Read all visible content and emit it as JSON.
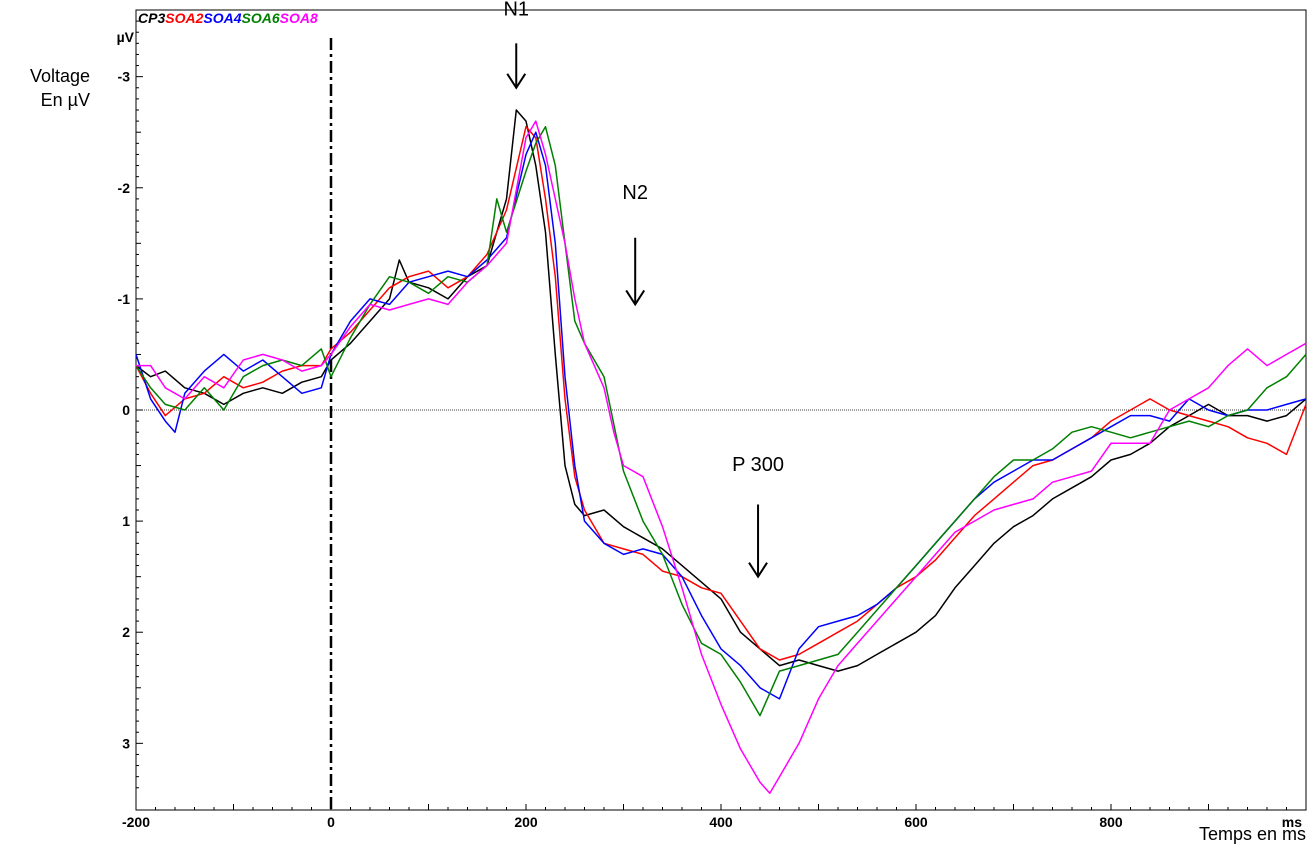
{
  "chart_data": {
    "type": "line",
    "title": "",
    "legend_title": "CP3",
    "ylabel_lines": [
      "Voltage",
      "En µV"
    ],
    "y_unit": "µV",
    "xlabel": "Temps en ms",
    "x_unit": "ms",
    "xlim": [
      -200,
      1000
    ],
    "ylim": [
      -3.6,
      3.6
    ],
    "y_inverted": true,
    "x_ticks": [
      -200,
      0,
      200,
      400,
      600,
      800
    ],
    "y_ticks": [
      -3,
      -2,
      -1,
      0,
      1,
      2,
      3
    ],
    "zero_line": true,
    "onset_line_x": 0,
    "legend_placement": "top-left",
    "series": [
      {
        "name": "CP3",
        "color": "#000000",
        "x": [
          -200,
          -185,
          -170,
          -150,
          -130,
          -110,
          -90,
          -70,
          -50,
          -30,
          -10,
          0,
          20,
          40,
          60,
          70,
          80,
          100,
          120,
          140,
          160,
          180,
          190,
          200,
          210,
          220,
          230,
          240,
          250,
          260,
          280,
          300,
          320,
          340,
          360,
          380,
          400,
          420,
          440,
          460,
          480,
          500,
          520,
          540,
          560,
          580,
          600,
          620,
          640,
          660,
          680,
          700,
          720,
          740,
          760,
          780,
          800,
          820,
          840,
          860,
          880,
          900,
          920,
          940,
          960,
          980,
          1000
        ],
        "y": [
          -0.4,
          -0.3,
          -0.35,
          -0.2,
          -0.15,
          -0.05,
          -0.15,
          -0.2,
          -0.15,
          -0.25,
          -0.3,
          -0.45,
          -0.6,
          -0.8,
          -1.0,
          -1.35,
          -1.15,
          -1.1,
          -1.0,
          -1.2,
          -1.3,
          -1.9,
          -2.7,
          -2.6,
          -2.2,
          -1.6,
          -0.5,
          0.5,
          0.85,
          0.95,
          0.9,
          1.05,
          1.15,
          1.25,
          1.4,
          1.55,
          1.7,
          2.0,
          2.15,
          2.3,
          2.25,
          2.3,
          2.35,
          2.3,
          2.2,
          2.1,
          2.0,
          1.85,
          1.6,
          1.4,
          1.2,
          1.05,
          0.95,
          0.8,
          0.7,
          0.6,
          0.45,
          0.4,
          0.3,
          0.15,
          0.05,
          -0.05,
          0.05,
          0.05,
          0.1,
          0.05,
          -0.1
        ]
      },
      {
        "name": "SOA2",
        "color": "#ff0000",
        "x": [
          -200,
          -185,
          -170,
          -150,
          -130,
          -110,
          -90,
          -70,
          -50,
          -30,
          -10,
          0,
          20,
          40,
          60,
          80,
          100,
          120,
          140,
          160,
          180,
          200,
          210,
          220,
          230,
          240,
          250,
          260,
          280,
          300,
          320,
          340,
          360,
          380,
          400,
          420,
          440,
          460,
          480,
          500,
          520,
          540,
          560,
          580,
          600,
          620,
          640,
          660,
          680,
          700,
          720,
          740,
          760,
          780,
          800,
          820,
          840,
          860,
          880,
          900,
          920,
          940,
          960,
          980,
          1000
        ],
        "y": [
          -0.4,
          -0.15,
          0.05,
          -0.1,
          -0.15,
          -0.3,
          -0.2,
          -0.25,
          -0.35,
          -0.4,
          -0.4,
          -0.55,
          -0.7,
          -0.9,
          -1.1,
          -1.2,
          -1.25,
          -1.1,
          -1.2,
          -1.4,
          -1.8,
          -2.55,
          -2.45,
          -1.9,
          -1.2,
          -0.1,
          0.6,
          0.9,
          1.2,
          1.25,
          1.3,
          1.45,
          1.5,
          1.6,
          1.65,
          1.9,
          2.15,
          2.25,
          2.2,
          2.1,
          2.0,
          1.9,
          1.75,
          1.6,
          1.5,
          1.35,
          1.15,
          0.95,
          0.8,
          0.65,
          0.5,
          0.45,
          0.35,
          0.25,
          0.1,
          0.0,
          -0.1,
          0.0,
          0.05,
          0.1,
          0.15,
          0.25,
          0.3,
          0.4,
          -0.05
        ]
      },
      {
        "name": "SOA4",
        "color": "#0000ff",
        "x": [
          -200,
          -185,
          -170,
          -160,
          -150,
          -130,
          -110,
          -90,
          -70,
          -50,
          -30,
          -10,
          0,
          20,
          40,
          60,
          80,
          100,
          120,
          140,
          160,
          180,
          200,
          210,
          220,
          230,
          240,
          250,
          260,
          280,
          300,
          320,
          340,
          360,
          380,
          400,
          420,
          440,
          460,
          480,
          500,
          520,
          540,
          560,
          580,
          600,
          620,
          640,
          660,
          680,
          700,
          720,
          740,
          760,
          780,
          800,
          820,
          840,
          860,
          880,
          900,
          920,
          940,
          960,
          980,
          1000
        ],
        "y": [
          -0.5,
          -0.1,
          0.1,
          0.2,
          -0.15,
          -0.35,
          -0.5,
          -0.35,
          -0.45,
          -0.3,
          -0.15,
          -0.2,
          -0.5,
          -0.8,
          -1.0,
          -0.95,
          -1.15,
          -1.2,
          -1.25,
          -1.2,
          -1.35,
          -1.55,
          -2.3,
          -2.5,
          -2.2,
          -1.5,
          -0.3,
          0.5,
          1.0,
          1.2,
          1.3,
          1.25,
          1.3,
          1.5,
          1.85,
          2.15,
          2.3,
          2.5,
          2.6,
          2.15,
          1.95,
          1.9,
          1.85,
          1.75,
          1.6,
          1.4,
          1.2,
          1.0,
          0.8,
          0.65,
          0.55,
          0.45,
          0.45,
          0.35,
          0.25,
          0.15,
          0.05,
          0.05,
          0.1,
          -0.1,
          0.0,
          0.05,
          0.0,
          0.0,
          -0.05,
          -0.1
        ]
      },
      {
        "name": "SOA6",
        "color": "#008000",
        "x": [
          -200,
          -185,
          -170,
          -150,
          -130,
          -110,
          -90,
          -70,
          -50,
          -30,
          -10,
          0,
          20,
          40,
          60,
          80,
          100,
          120,
          140,
          160,
          170,
          180,
          200,
          210,
          220,
          230,
          240,
          250,
          260,
          280,
          300,
          320,
          340,
          360,
          380,
          400,
          420,
          440,
          460,
          480,
          500,
          520,
          540,
          560,
          580,
          600,
          620,
          640,
          660,
          680,
          700,
          720,
          740,
          760,
          780,
          800,
          820,
          840,
          860,
          880,
          900,
          920,
          940,
          960,
          980,
          1000
        ],
        "y": [
          -0.4,
          -0.2,
          -0.05,
          0.0,
          -0.2,
          0.0,
          -0.3,
          -0.4,
          -0.45,
          -0.4,
          -0.55,
          -0.3,
          -0.65,
          -0.95,
          -1.2,
          -1.15,
          -1.05,
          -1.2,
          -1.15,
          -1.3,
          -1.9,
          -1.6,
          -2.15,
          -2.4,
          -2.55,
          -2.2,
          -1.5,
          -0.8,
          -0.6,
          -0.3,
          0.55,
          1.0,
          1.3,
          1.75,
          2.1,
          2.2,
          2.45,
          2.75,
          2.35,
          2.3,
          2.25,
          2.2,
          2.0,
          1.8,
          1.6,
          1.4,
          1.2,
          1.0,
          0.8,
          0.6,
          0.45,
          0.45,
          0.35,
          0.2,
          0.15,
          0.2,
          0.25,
          0.2,
          0.15,
          0.1,
          0.15,
          0.05,
          0.0,
          -0.2,
          -0.3,
          -0.5
        ]
      },
      {
        "name": "SOA8",
        "color": "#ff00ff",
        "x": [
          -200,
          -185,
          -170,
          -150,
          -130,
          -110,
          -90,
          -70,
          -50,
          -30,
          -10,
          0,
          20,
          40,
          60,
          80,
          100,
          120,
          140,
          160,
          180,
          200,
          210,
          220,
          230,
          240,
          250,
          260,
          270,
          280,
          290,
          300,
          310,
          320,
          340,
          360,
          380,
          400,
          420,
          440,
          450,
          460,
          480,
          500,
          520,
          540,
          560,
          580,
          600,
          620,
          640,
          660,
          680,
          700,
          720,
          740,
          760,
          780,
          800,
          820,
          840,
          860,
          880,
          900,
          920,
          940,
          960,
          980,
          1000
        ],
        "y": [
          -0.4,
          -0.4,
          -0.2,
          -0.1,
          -0.3,
          -0.2,
          -0.45,
          -0.5,
          -0.45,
          -0.35,
          -0.4,
          -0.5,
          -0.75,
          -0.95,
          -0.9,
          -0.95,
          -1.0,
          -0.95,
          -1.15,
          -1.3,
          -1.5,
          -2.45,
          -2.6,
          -2.3,
          -1.9,
          -1.5,
          -1.0,
          -0.6,
          -0.4,
          -0.2,
          0.2,
          0.5,
          0.55,
          0.6,
          1.05,
          1.6,
          2.2,
          2.65,
          3.05,
          3.35,
          3.45,
          3.3,
          3.0,
          2.6,
          2.3,
          2.1,
          1.9,
          1.7,
          1.5,
          1.3,
          1.1,
          1.0,
          0.9,
          0.85,
          0.8,
          0.65,
          0.6,
          0.55,
          0.3,
          0.3,
          0.3,
          0.0,
          -0.1,
          -0.2,
          -0.4,
          -0.55,
          -0.4,
          -0.5,
          -0.6
        ]
      }
    ],
    "annotations": [
      {
        "text": "N1",
        "x": 190,
        "label_y": -3.55,
        "arrow_from": -3.3,
        "arrow_to": -2.9
      },
      {
        "text": "N2",
        "x": 312,
        "label_y": -1.9,
        "arrow_from": -1.55,
        "arrow_to": -0.95
      },
      {
        "text": "P 300",
        "x": 438,
        "label_y": 0.55,
        "arrow_from": 0.85,
        "arrow_to": 1.5
      }
    ]
  }
}
